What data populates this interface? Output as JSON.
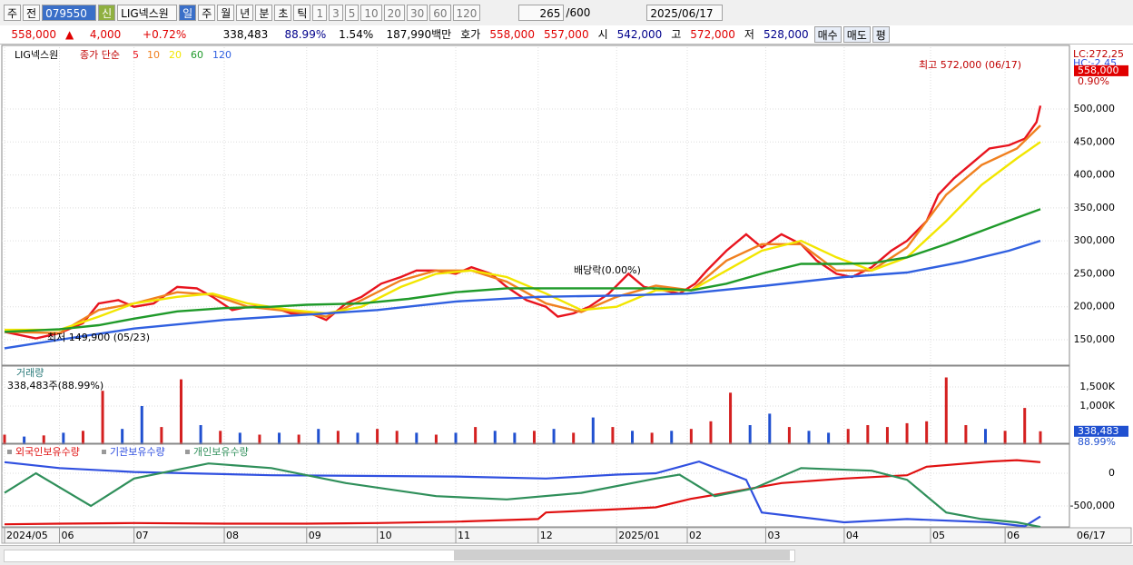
{
  "toolbar": {
    "items": [
      "주",
      "전",
      "079550"
    ],
    "stock_tag": "신",
    "stock_name": "LIG넥스원",
    "periods": [
      "일",
      "주",
      "월",
      "년",
      "분",
      "초",
      "틱"
    ],
    "intervals": [
      "1",
      "3",
      "5",
      "10",
      "20",
      "30",
      "60",
      "120"
    ],
    "count": "265",
    "max": "/600",
    "date": "2025/06/17"
  },
  "quote": {
    "price": "558,000",
    "arrow": "▲",
    "change": "4,000",
    "change_pct": "+0.72%",
    "volume": "338,483",
    "volume_ratio": "88.99%",
    "turnover": "1.54%",
    "amount": "187,990백만",
    "ask_label": "호가",
    "ask": "558,000",
    "bid": "557,000",
    "open_label": "시",
    "open": "542,000",
    "high_label": "고",
    "high": "572,000",
    "low_label": "저",
    "low": "528,000",
    "buttons": [
      "매수",
      "매도",
      "평"
    ]
  },
  "chart_data": [
    {
      "type": "line",
      "symbol": "LIG넥스원",
      "legend_title": "종가 단순",
      "xlim": [
        0,
        264
      ],
      "ylim": [
        111400,
        593700
      ],
      "yticks": [
        {
          "value": 150000,
          "label": "150,000"
        },
        {
          "value": 200000,
          "label": "200,000"
        },
        {
          "value": 250000,
          "label": "250,000"
        },
        {
          "value": 300000,
          "label": "300,000"
        },
        {
          "value": 350000,
          "label": "350,000"
        },
        {
          "value": 400000,
          "label": "400,000"
        },
        {
          "value": 450000,
          "label": "450,000"
        },
        {
          "value": 500000,
          "label": "500,000"
        }
      ],
      "right_notes": [
        "LC:272,25",
        "HC:-2.45"
      ],
      "last_price": {
        "value": 558000,
        "label": "558,000"
      },
      "last_pct": "0.90%",
      "annotations": [
        "최고 572,000 (06/17)",
        "최저 149,900 (05/23)",
        "배당락(0.00%)"
      ],
      "series": [
        {
          "name": "5",
          "color": "#e8141e",
          "x": [
            0,
            8,
            14,
            20,
            24,
            29,
            33,
            38,
            44,
            49,
            53,
            58,
            62,
            68,
            73,
            78,
            82,
            87,
            91,
            96,
            101,
            105,
            110,
            115,
            119,
            124,
            128,
            133,
            138,
            141,
            145,
            149,
            154,
            159,
            163,
            168,
            172,
            176,
            179,
            184,
            189,
            193,
            198,
            203,
            207,
            212,
            216,
            221,
            226,
            230,
            235,
            238,
            242,
            246,
            251,
            256,
            260,
            263,
            264
          ],
          "values": [
            162000,
            152000,
            160000,
            175000,
            205000,
            210000,
            200000,
            205000,
            230000,
            228000,
            215000,
            195000,
            200000,
            200000,
            190000,
            190000,
            180000,
            205000,
            215000,
            235000,
            245000,
            255000,
            255000,
            250000,
            260000,
            250000,
            230000,
            210000,
            200000,
            185000,
            190000,
            200000,
            220000,
            250000,
            230000,
            225000,
            220000,
            235000,
            255000,
            285000,
            310000,
            290000,
            310000,
            295000,
            270000,
            250000,
            245000,
            260000,
            285000,
            300000,
            330000,
            370000,
            395000,
            415000,
            440000,
            445000,
            455000,
            480000,
            505000
          ]
        },
        {
          "name": "10",
          "color": "#f08020",
          "x": [
            0,
            14,
            24,
            33,
            44,
            53,
            62,
            73,
            82,
            91,
            101,
            110,
            119,
            128,
            138,
            147,
            156,
            166,
            175,
            184,
            193,
            203,
            212,
            221,
            230,
            240,
            249,
            258,
            264
          ],
          "values": [
            162000,
            160000,
            195000,
            205000,
            222000,
            218000,
            200000,
            193000,
            185000,
            210000,
            240000,
            255000,
            255000,
            238000,
            205000,
            192000,
            215000,
            232000,
            225000,
            270000,
            295000,
            295000,
            255000,
            255000,
            290000,
            370000,
            415000,
            440000,
            475000
          ]
        },
        {
          "name": "20",
          "color": "#f2e600",
          "x": [
            0,
            14,
            24,
            33,
            44,
            53,
            62,
            73,
            82,
            91,
            101,
            110,
            119,
            128,
            138,
            147,
            156,
            166,
            175,
            184,
            193,
            203,
            212,
            221,
            230,
            240,
            249,
            258,
            264
          ],
          "values": [
            165000,
            165000,
            185000,
            205000,
            215000,
            220000,
            205000,
            195000,
            190000,
            200000,
            230000,
            250000,
            255000,
            245000,
            220000,
            195000,
            200000,
            225000,
            225000,
            255000,
            285000,
            300000,
            275000,
            255000,
            275000,
            330000,
            385000,
            425000,
            450000
          ]
        },
        {
          "name": "60",
          "color": "#1f9a2a",
          "x": [
            0,
            14,
            24,
            33,
            44,
            56,
            68,
            77,
            91,
            103,
            115,
            128,
            138,
            147,
            156,
            166,
            175,
            184,
            194,
            203,
            212,
            221,
            230,
            240,
            249,
            258,
            264
          ],
          "values": [
            162000,
            166000,
            172000,
            182000,
            193000,
            198000,
            200000,
            203000,
            205000,
            212000,
            222000,
            228000,
            228000,
            228000,
            228000,
            228000,
            225000,
            235000,
            252000,
            265000,
            265000,
            266000,
            275000,
            295000,
            315000,
            335000,
            348000
          ]
        },
        {
          "name": "120",
          "color": "#3060e0",
          "x": [
            0,
            14,
            33,
            56,
            77,
            95,
            115,
            136,
            156,
            174,
            194,
            214,
            230,
            244,
            256,
            264
          ],
          "values": [
            137000,
            150000,
            167000,
            180000,
            188000,
            195000,
            208000,
            215000,
            217000,
            220000,
            232000,
            245000,
            252000,
            268000,
            285000,
            300000
          ]
        }
      ]
    },
    {
      "type": "bar",
      "title": "거래량",
      "subtitle": "338,483주(88.99%)",
      "xlim": [
        0,
        264
      ],
      "ylim": [
        0,
        2000000
      ],
      "yticks": [
        {
          "value": 1000000,
          "label": "1,000K"
        },
        {
          "value": 1500000,
          "label": "1,500K"
        }
      ],
      "last_volume": {
        "value": 338483,
        "label": "338,483"
      },
      "last_pct": "88.99%",
      "x": [
        0,
        5,
        10,
        15,
        20,
        25,
        30,
        35,
        40,
        45,
        50,
        55,
        60,
        65,
        70,
        75,
        80,
        85,
        90,
        95,
        100,
        105,
        110,
        115,
        120,
        125,
        130,
        135,
        140,
        145,
        150,
        155,
        160,
        165,
        170,
        175,
        180,
        185,
        190,
        195,
        200,
        205,
        210,
        215,
        220,
        225,
        230,
        235,
        240,
        245,
        250,
        255,
        260,
        264
      ],
      "values": [
        250000,
        200000,
        230000,
        300000,
        350000,
        1400000,
        400000,
        1000000,
        450000,
        1700000,
        500000,
        350000,
        300000,
        250000,
        300000,
        250000,
        400000,
        350000,
        300000,
        400000,
        350000,
        300000,
        250000,
        300000,
        450000,
        350000,
        300000,
        350000,
        400000,
        300000,
        700000,
        450000,
        350000,
        300000,
        350000,
        400000,
        600000,
        1350000,
        500000,
        800000,
        450000,
        350000,
        300000,
        400000,
        500000,
        450000,
        550000,
        600000,
        1750000,
        500000,
        400000,
        350000,
        950000,
        338483
      ],
      "bar_colors": [
        "#d42020",
        "#2050d0",
        "#d42020",
        "#2050d0",
        "#d42020",
        "#d42020",
        "#2050d0",
        "#2050d0",
        "#d42020",
        "#d42020",
        "#2050d0",
        "#d42020",
        "#2050d0",
        "#d42020",
        "#2050d0",
        "#d42020",
        "#2050d0",
        "#d42020",
        "#2050d0",
        "#d42020",
        "#d42020",
        "#2050d0",
        "#d42020",
        "#2050d0",
        "#d42020",
        "#2050d0",
        "#2050d0",
        "#d42020",
        "#2050d0",
        "#d42020",
        "#2050d0",
        "#d42020",
        "#2050d0",
        "#d42020",
        "#2050d0",
        "#d42020",
        "#d42020",
        "#d42020",
        "#2050d0",
        "#2050d0",
        "#d42020",
        "#2050d0",
        "#2050d0",
        "#d42020",
        "#d42020",
        "#d42020",
        "#d42020",
        "#d42020",
        "#d42020",
        "#d42020",
        "#2050d0",
        "#d42020",
        "#d42020",
        "#d42020"
      ]
    },
    {
      "type": "line",
      "xlim": [
        0,
        264
      ],
      "ylim": [
        -819000,
        431000
      ],
      "yticks": [
        0,
        {
          "value": -500000,
          "label": "-500,000"
        }
      ],
      "xticks": [
        {
          "value": 0,
          "label": "2024/05"
        },
        {
          "value": 14,
          "label": "06"
        },
        {
          "value": 33,
          "label": "07"
        },
        {
          "value": 56,
          "label": "08"
        },
        {
          "value": 77,
          "label": "09"
        },
        {
          "value": 95,
          "label": "10"
        },
        {
          "value": 115,
          "label": "11"
        },
        {
          "value": 136,
          "label": "12"
        },
        {
          "value": 156,
          "label": "2025/01"
        },
        {
          "value": 174,
          "label": "02"
        },
        {
          "value": 194,
          "label": "03"
        },
        {
          "value": 214,
          "label": "04"
        },
        {
          "value": 236,
          "label": "05"
        },
        {
          "value": 255,
          "label": "06"
        }
      ],
      "x_end_label": "06/17",
      "series": [
        {
          "name": "외국인보유수량",
          "color": "#e01010",
          "x": [
            0,
            14,
            33,
            56,
            77,
            95,
            115,
            136,
            138,
            156,
            166,
            175,
            184,
            198,
            214,
            230,
            235,
            251,
            258,
            264
          ],
          "values": [
            -780000,
            -770000,
            -760000,
            -770000,
            -770000,
            -760000,
            -740000,
            -700000,
            -600000,
            -550000,
            -520000,
            -390000,
            -300000,
            -150000,
            -80000,
            -30000,
            100000,
            180000,
            200000,
            170000
          ]
        },
        {
          "name": "기관보유수량",
          "color": "#3050e0",
          "x": [
            0,
            14,
            33,
            68,
            115,
            138,
            156,
            166,
            177,
            189,
            193,
            214,
            230,
            251,
            260,
            264
          ],
          "values": [
            170000,
            80000,
            20000,
            -30000,
            -50000,
            -80000,
            -20000,
            0,
            180000,
            -100000,
            -600000,
            -750000,
            -700000,
            -750000,
            -810000,
            -660000
          ]
        },
        {
          "name": "개인보유수량",
          "color": "#2f8f5a",
          "x": [
            0,
            8,
            22,
            33,
            52,
            68,
            87,
            110,
            128,
            147,
            166,
            172,
            181,
            191,
            203,
            221,
            230,
            240,
            249,
            258,
            264
          ],
          "values": [
            -300000,
            0,
            -500000,
            -80000,
            150000,
            80000,
            -150000,
            -350000,
            -400000,
            -300000,
            -80000,
            -20000,
            -350000,
            -230000,
            80000,
            40000,
            -100000,
            -600000,
            -700000,
            -750000,
            -820000
          ]
        }
      ]
    }
  ]
}
